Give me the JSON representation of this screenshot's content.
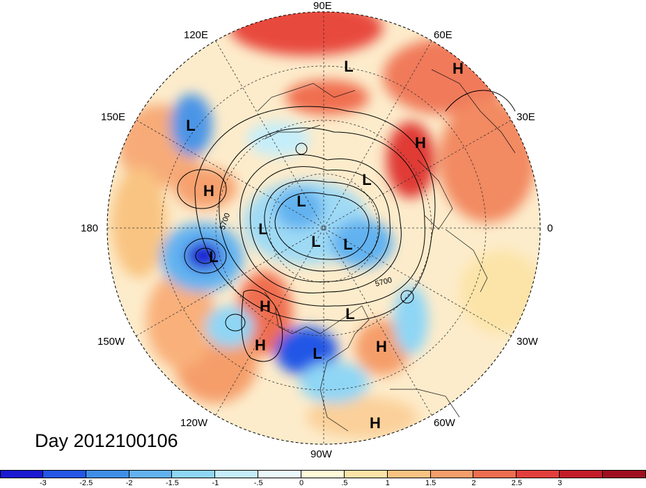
{
  "map": {
    "longitude_labels": [
      {
        "id": "90e",
        "text": "90E"
      },
      {
        "id": "60e",
        "text": "60E"
      },
      {
        "id": "30e",
        "text": "30E"
      },
      {
        "id": "0",
        "text": "0"
      },
      {
        "id": "30w",
        "text": "30W"
      },
      {
        "id": "60w",
        "text": "60W"
      },
      {
        "id": "90w",
        "text": "90W"
      },
      {
        "id": "120w",
        "text": "120W"
      },
      {
        "id": "150w",
        "text": "150W"
      },
      {
        "id": "180",
        "text": "180"
      },
      {
        "id": "150e",
        "text": "150E"
      },
      {
        "id": "120e",
        "text": "120E"
      }
    ],
    "pressure_centers": [
      {
        "type": "L"
      },
      {
        "type": "H"
      },
      {
        "type": "L"
      },
      {
        "type": "H"
      },
      {
        "type": "H"
      },
      {
        "type": "L"
      },
      {
        "type": "L"
      },
      {
        "type": "L"
      },
      {
        "type": "L"
      },
      {
        "type": "L"
      },
      {
        "type": "L"
      },
      {
        "type": "L"
      },
      {
        "type": "H"
      },
      {
        "type": "H"
      },
      {
        "type": "L"
      },
      {
        "type": "H"
      },
      {
        "type": "H"
      }
    ],
    "contour_labels": [
      "5700",
      "5700"
    ]
  },
  "day_label": "Day 2012100106",
  "colorbar": {
    "colors": [
      "#1a1ad2",
      "#2457e6",
      "#3f8fe6",
      "#62b2f0",
      "#8fd6f5",
      "#c5eefa",
      "#ebf9fd",
      "#fffad8",
      "#fce4a8",
      "#f9c482",
      "#f59e6a",
      "#ef6e50",
      "#e23f3c",
      "#c31d2a",
      "#9e1020"
    ],
    "ticks": [
      "-3",
      "-2.5",
      "-2",
      "-1.5",
      "-1",
      "-.5",
      "0",
      ".5",
      "1",
      "1.5",
      "2",
      "2.5",
      "3"
    ]
  }
}
